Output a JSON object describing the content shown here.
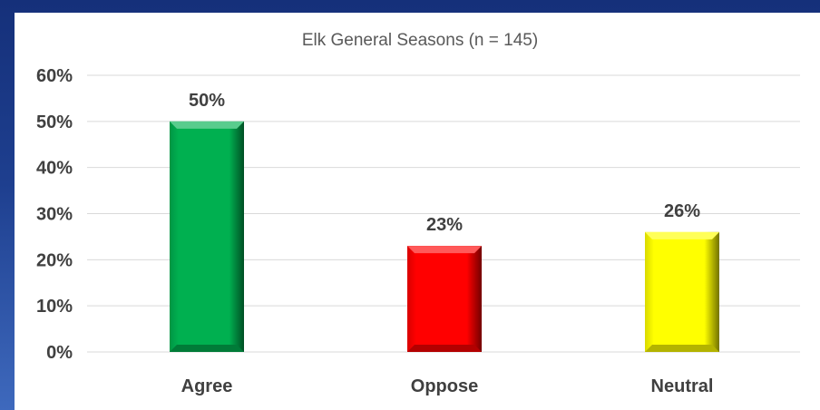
{
  "chart_data": {
    "type": "bar",
    "title": "Elk General Seasons (n = 145)",
    "categories": [
      "Agree",
      "Oppose",
      "Neutral"
    ],
    "values": [
      50,
      23,
      26
    ],
    "data_labels": [
      "50%",
      "23%",
      "26%"
    ],
    "colors": [
      "#00b050",
      "#ff0000",
      "#ffff00"
    ],
    "ylim": [
      0,
      60
    ],
    "yticks": [
      0,
      10,
      20,
      30,
      40,
      50,
      60
    ],
    "ytick_labels": [
      "0%",
      "10%",
      "20%",
      "30%",
      "40%",
      "50%",
      "60%"
    ],
    "grid": true,
    "legend": "none"
  }
}
